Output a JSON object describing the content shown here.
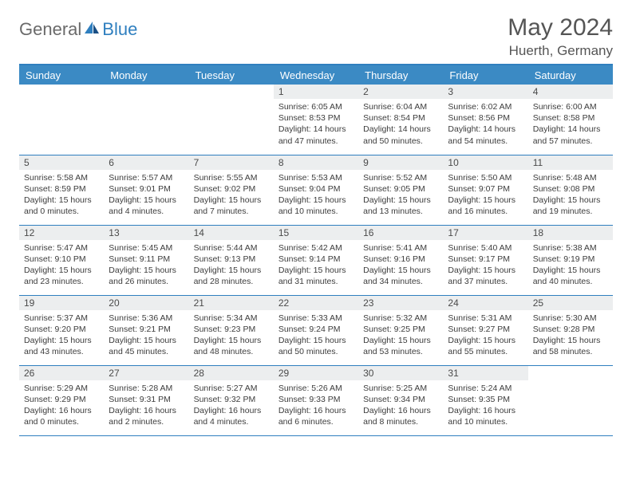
{
  "brand": {
    "part1": "General",
    "part2": "Blue"
  },
  "title": "May 2024",
  "location": "Huerth, Germany",
  "colors": {
    "accent": "#3b8ac4",
    "rule": "#2f7fbf",
    "daynum_bg": "#eceeef",
    "text": "#3c3c3c",
    "title_text": "#555555"
  },
  "day_headers": [
    "Sunday",
    "Monday",
    "Tuesday",
    "Wednesday",
    "Thursday",
    "Friday",
    "Saturday"
  ],
  "weeks": [
    [
      {
        "n": "",
        "sr": "",
        "ss": "",
        "dl": ""
      },
      {
        "n": "",
        "sr": "",
        "ss": "",
        "dl": ""
      },
      {
        "n": "",
        "sr": "",
        "ss": "",
        "dl": ""
      },
      {
        "n": "1",
        "sr": "6:05 AM",
        "ss": "8:53 PM",
        "dl": "14 hours and 47 minutes."
      },
      {
        "n": "2",
        "sr": "6:04 AM",
        "ss": "8:54 PM",
        "dl": "14 hours and 50 minutes."
      },
      {
        "n": "3",
        "sr": "6:02 AM",
        "ss": "8:56 PM",
        "dl": "14 hours and 54 minutes."
      },
      {
        "n": "4",
        "sr": "6:00 AM",
        "ss": "8:58 PM",
        "dl": "14 hours and 57 minutes."
      }
    ],
    [
      {
        "n": "5",
        "sr": "5:58 AM",
        "ss": "8:59 PM",
        "dl": "15 hours and 0 minutes."
      },
      {
        "n": "6",
        "sr": "5:57 AM",
        "ss": "9:01 PM",
        "dl": "15 hours and 4 minutes."
      },
      {
        "n": "7",
        "sr": "5:55 AM",
        "ss": "9:02 PM",
        "dl": "15 hours and 7 minutes."
      },
      {
        "n": "8",
        "sr": "5:53 AM",
        "ss": "9:04 PM",
        "dl": "15 hours and 10 minutes."
      },
      {
        "n": "9",
        "sr": "5:52 AM",
        "ss": "9:05 PM",
        "dl": "15 hours and 13 minutes."
      },
      {
        "n": "10",
        "sr": "5:50 AM",
        "ss": "9:07 PM",
        "dl": "15 hours and 16 minutes."
      },
      {
        "n": "11",
        "sr": "5:48 AM",
        "ss": "9:08 PM",
        "dl": "15 hours and 19 minutes."
      }
    ],
    [
      {
        "n": "12",
        "sr": "5:47 AM",
        "ss": "9:10 PM",
        "dl": "15 hours and 23 minutes."
      },
      {
        "n": "13",
        "sr": "5:45 AM",
        "ss": "9:11 PM",
        "dl": "15 hours and 26 minutes."
      },
      {
        "n": "14",
        "sr": "5:44 AM",
        "ss": "9:13 PM",
        "dl": "15 hours and 28 minutes."
      },
      {
        "n": "15",
        "sr": "5:42 AM",
        "ss": "9:14 PM",
        "dl": "15 hours and 31 minutes."
      },
      {
        "n": "16",
        "sr": "5:41 AM",
        "ss": "9:16 PM",
        "dl": "15 hours and 34 minutes."
      },
      {
        "n": "17",
        "sr": "5:40 AM",
        "ss": "9:17 PM",
        "dl": "15 hours and 37 minutes."
      },
      {
        "n": "18",
        "sr": "5:38 AM",
        "ss": "9:19 PM",
        "dl": "15 hours and 40 minutes."
      }
    ],
    [
      {
        "n": "19",
        "sr": "5:37 AM",
        "ss": "9:20 PM",
        "dl": "15 hours and 43 minutes."
      },
      {
        "n": "20",
        "sr": "5:36 AM",
        "ss": "9:21 PM",
        "dl": "15 hours and 45 minutes."
      },
      {
        "n": "21",
        "sr": "5:34 AM",
        "ss": "9:23 PM",
        "dl": "15 hours and 48 minutes."
      },
      {
        "n": "22",
        "sr": "5:33 AM",
        "ss": "9:24 PM",
        "dl": "15 hours and 50 minutes."
      },
      {
        "n": "23",
        "sr": "5:32 AM",
        "ss": "9:25 PM",
        "dl": "15 hours and 53 minutes."
      },
      {
        "n": "24",
        "sr": "5:31 AM",
        "ss": "9:27 PM",
        "dl": "15 hours and 55 minutes."
      },
      {
        "n": "25",
        "sr": "5:30 AM",
        "ss": "9:28 PM",
        "dl": "15 hours and 58 minutes."
      }
    ],
    [
      {
        "n": "26",
        "sr": "5:29 AM",
        "ss": "9:29 PM",
        "dl": "16 hours and 0 minutes."
      },
      {
        "n": "27",
        "sr": "5:28 AM",
        "ss": "9:31 PM",
        "dl": "16 hours and 2 minutes."
      },
      {
        "n": "28",
        "sr": "5:27 AM",
        "ss": "9:32 PM",
        "dl": "16 hours and 4 minutes."
      },
      {
        "n": "29",
        "sr": "5:26 AM",
        "ss": "9:33 PM",
        "dl": "16 hours and 6 minutes."
      },
      {
        "n": "30",
        "sr": "5:25 AM",
        "ss": "9:34 PM",
        "dl": "16 hours and 8 minutes."
      },
      {
        "n": "31",
        "sr": "5:24 AM",
        "ss": "9:35 PM",
        "dl": "16 hours and 10 minutes."
      },
      {
        "n": "",
        "sr": "",
        "ss": "",
        "dl": ""
      }
    ]
  ],
  "labels": {
    "sunrise": "Sunrise:",
    "sunset": "Sunset:",
    "daylight": "Daylight:"
  }
}
